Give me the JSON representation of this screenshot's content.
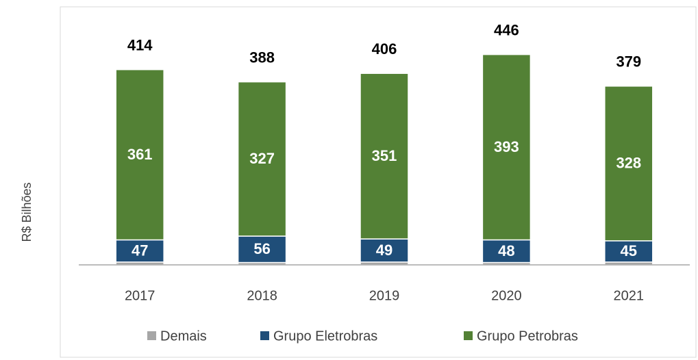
{
  "chart_data": {
    "type": "stacked_bar",
    "y_label": "R$ Bilhões",
    "categories": [
      "2017",
      "2018",
      "2019",
      "2020",
      "2021"
    ],
    "series": [
      {
        "name": "Demais",
        "color": "#a6a6a6",
        "values": [
          6,
          5,
          6,
          5,
          6
        ],
        "data_labels": false
      },
      {
        "name": "Grupo Eletrobras",
        "color": "#1f4e79",
        "values": [
          47,
          56,
          49,
          48,
          45
        ],
        "data_labels": true
      },
      {
        "name": "Grupo Petrobras",
        "color": "#538135",
        "values": [
          361,
          327,
          351,
          393,
          328
        ],
        "data_labels": true
      }
    ],
    "totals": [
      414,
      388,
      406,
      446,
      379
    ],
    "ylim": [
      0,
      460
    ],
    "legend": "bottom"
  }
}
